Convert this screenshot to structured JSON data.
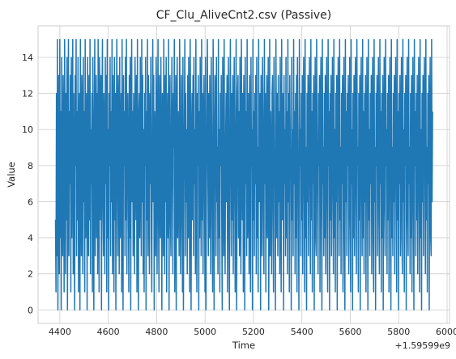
{
  "chart_data": {
    "type": "line",
    "title": "CF_Clu_AliveCnt2.csv (Passive)",
    "xlabel": "Time",
    "ylabel": "Value",
    "x_offset_text": "+1.59599e9",
    "xlim": [
      4310,
      6010
    ],
    "ylim": [
      -0.75,
      15.75
    ],
    "xticks": [
      4400,
      4600,
      4800,
      5000,
      5200,
      5400,
      5600,
      5800,
      6000
    ],
    "xtick_labels": [
      "4400",
      "4600",
      "4800",
      "5000",
      "5200",
      "5400",
      "5600",
      "5800",
      "6000"
    ],
    "yticks": [
      0,
      2,
      4,
      6,
      8,
      10,
      12,
      14
    ],
    "ytick_labels": [
      "0",
      "2",
      "4",
      "6",
      "8",
      "10",
      "12",
      "14"
    ],
    "grid": true,
    "line_color": "#1f77b4",
    "series": [
      {
        "x_start": 4382,
        "x_end": 5940,
        "values": [
          5,
          1,
          12,
          3,
          15,
          0,
          8,
          13,
          2,
          15,
          4,
          11,
          0,
          14,
          6,
          3,
          13,
          9,
          1,
          15,
          10,
          2,
          12,
          5,
          14,
          0,
          9,
          15,
          3,
          11,
          7,
          13,
          1,
          14,
          4,
          10,
          15,
          2,
          12,
          6,
          0,
          13,
          8,
          15,
          3,
          11,
          5,
          14,
          1,
          9,
          12,
          0,
          15,
          7,
          3,
          13,
          10,
          2,
          14,
          6,
          11,
          1,
          15,
          4,
          8,
          12,
          0,
          14,
          9,
          3,
          13,
          5,
          15,
          2,
          10,
          7,
          12,
          1,
          14,
          6,
          0,
          11,
          15,
          3,
          9,
          13,
          4,
          12,
          2,
          15,
          8,
          1,
          14,
          10,
          5,
          13,
          0,
          11,
          15,
          6,
          3,
          12,
          9,
          2,
          14,
          7,
          13,
          1,
          15,
          4,
          10,
          0,
          12,
          8,
          14,
          3,
          11,
          6,
          15,
          2,
          13,
          9,
          1,
          14,
          5,
          12,
          0,
          10,
          15,
          7,
          3,
          13,
          11,
          2,
          14,
          4,
          9,
          12,
          1,
          15,
          6,
          0,
          13,
          8,
          11,
          3,
          14,
          5,
          15,
          2,
          10,
          12,
          7,
          1,
          13,
          4,
          14,
          0,
          9,
          15,
          6,
          11,
          3,
          12,
          8,
          2,
          14,
          10,
          5,
          13,
          1,
          15,
          7,
          0,
          11,
          12,
          4,
          14,
          9,
          3,
          15,
          6,
          13,
          2,
          10,
          1,
          12,
          8,
          14,
          0,
          11,
          5,
          15,
          3,
          13,
          9,
          2,
          12,
          7,
          14,
          4,
          1,
          10,
          15,
          6,
          13,
          0,
          11,
          8,
          3,
          14,
          12,
          2,
          9,
          15,
          5,
          1,
          13,
          10,
          4,
          14,
          7,
          0,
          12,
          11,
          3,
          15,
          8,
          2,
          13,
          6,
          14,
          1,
          9,
          12,
          4,
          15,
          0,
          10,
          13,
          5,
          3,
          11,
          14,
          7,
          2,
          12,
          9,
          15,
          1,
          6,
          13,
          0,
          10,
          14,
          4,
          11,
          8,
          3,
          15,
          12,
          2,
          5,
          13,
          9,
          1,
          14,
          0,
          7,
          11,
          15,
          3,
          12,
          6,
          10,
          2,
          13,
          4,
          14,
          8,
          1,
          15,
          11,
          0,
          9,
          12,
          5,
          13,
          3,
          14,
          7,
          10,
          2,
          15,
          6,
          1,
          12,
          8,
          13,
          0,
          11,
          4,
          14,
          9,
          3,
          15,
          5,
          12,
          2,
          10,
          13,
          7,
          1,
          14,
          0,
          6,
          11,
          15,
          8,
          3,
          12,
          4,
          13,
          9,
          2,
          14,
          10,
          5,
          1,
          15,
          11,
          0,
          7,
          13,
          12,
          3,
          14,
          6,
          9,
          2,
          15,
          4,
          10,
          1,
          12,
          8,
          13,
          5,
          0,
          14,
          11,
          3,
          15,
          7,
          2,
          9,
          12,
          6,
          13,
          1,
          10,
          14,
          4,
          0,
          11,
          15,
          8,
          3,
          12,
          5,
          13,
          2,
          9,
          14,
          7,
          1,
          10,
          15,
          0,
          6,
          12,
          13,
          4,
          11,
          3,
          14,
          8,
          2,
          15,
          9,
          5,
          12,
          1,
          13,
          10,
          0,
          14,
          7,
          11,
          3,
          15,
          4,
          6,
          12,
          2,
          13,
          9,
          1,
          14,
          8,
          10,
          0,
          15,
          5,
          11,
          3,
          12,
          7,
          13,
          2,
          14,
          4,
          9,
          1,
          15,
          6,
          10,
          12,
          0,
          13,
          8,
          3,
          14,
          11,
          5,
          2,
          15,
          7,
          12,
          1,
          9,
          13,
          4,
          10,
          14,
          0,
          6,
          15,
          3,
          11,
          8,
          2,
          12,
          13,
          5,
          1,
          14,
          9,
          7,
          0,
          15,
          10,
          4,
          12,
          3,
          13,
          6,
          11,
          2,
          14,
          8,
          1,
          15,
          5,
          9,
          12,
          0,
          13,
          7,
          10,
          3,
          14,
          4,
          11,
          2,
          15,
          6,
          12,
          1,
          13,
          9,
          8,
          0,
          14,
          5,
          10,
          3,
          15,
          7,
          11,
          2,
          12,
          4,
          13,
          1,
          14,
          9,
          6,
          0,
          15,
          8,
          10,
          3,
          12,
          5,
          13,
          2,
          11,
          14,
          7,
          1,
          15,
          4,
          9,
          0,
          12,
          6,
          13,
          3,
          10,
          14,
          8,
          2,
          15,
          5,
          11,
          1,
          12,
          7,
          13,
          0,
          9,
          14,
          4,
          3,
          15,
          10,
          6,
          2,
          12,
          8,
          13,
          1,
          11,
          14,
          5,
          0,
          15,
          7,
          9,
          3,
          12,
          4,
          13,
          2,
          10,
          14,
          6,
          1,
          15,
          8,
          11,
          0,
          12,
          5,
          13,
          3,
          9,
          14,
          7,
          2,
          15,
          4,
          10,
          1,
          12,
          6,
          13,
          0,
          11,
          14,
          8,
          3,
          15,
          5,
          9,
          2,
          12,
          7,
          13,
          1,
          10,
          14,
          4,
          0,
          15,
          6,
          11,
          3,
          12,
          8,
          13,
          2,
          9,
          14,
          5,
          1,
          15,
          7,
          10,
          0,
          12,
          4,
          13,
          3,
          11,
          14,
          6,
          2,
          15,
          8,
          9,
          1,
          12,
          5,
          13,
          0,
          10,
          14,
          7,
          3,
          15,
          4,
          11,
          2,
          12,
          6,
          13,
          1,
          9,
          14,
          8,
          0,
          15,
          5,
          10,
          3,
          12,
          7,
          13,
          2,
          11,
          14,
          4,
          1,
          15,
          6,
          9,
          0,
          12,
          8,
          13,
          3,
          10,
          14,
          5,
          2,
          15,
          7,
          11,
          1,
          12,
          4,
          13,
          0,
          9,
          14,
          6,
          3,
          15,
          8,
          10,
          2,
          12,
          5,
          13,
          1,
          11,
          14,
          7,
          0,
          15,
          4,
          9,
          3,
          12,
          6,
          13,
          2,
          10,
          14,
          8,
          1,
          15,
          5,
          11,
          0,
          12,
          7,
          13,
          3,
          9,
          14,
          4,
          2,
          15,
          6,
          10,
          1,
          12,
          8,
          13,
          0,
          11,
          14,
          5,
          3,
          15,
          7,
          9,
          2,
          12,
          4,
          13,
          1,
          10,
          14,
          6,
          0,
          15,
          8,
          11,
          3,
          12,
          5,
          13,
          2,
          9,
          14,
          7,
          1,
          15,
          4,
          10,
          0,
          12,
          6,
          13,
          3,
          11,
          14,
          8,
          2,
          15,
          5,
          9,
          1,
          12,
          7,
          13,
          0,
          10,
          14,
          4,
          3,
          15,
          6,
          11
        ]
      }
    ]
  }
}
